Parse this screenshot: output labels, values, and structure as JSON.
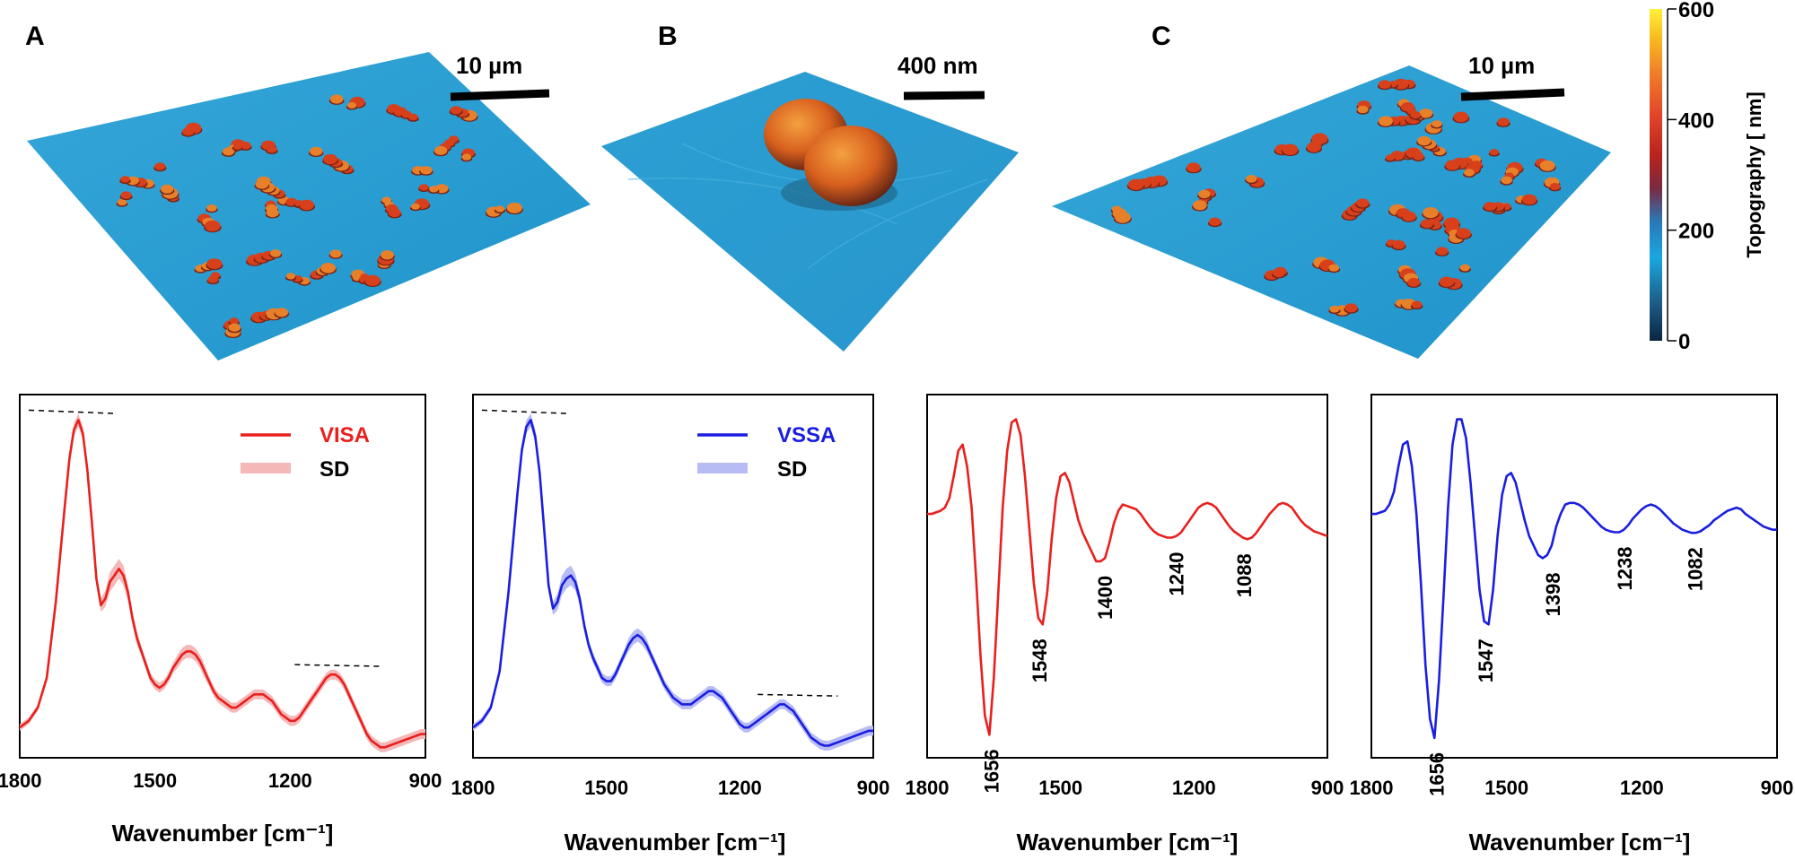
{
  "panels_top": [
    {
      "letter": "A",
      "scale_label": "10 µm"
    },
    {
      "letter": "B",
      "scale_label": "400 nm"
    },
    {
      "letter": "C",
      "scale_label": "10 µm"
    }
  ],
  "colorbar": {
    "label": "Topography [ nm]",
    "ticks": [
      0,
      200,
      400,
      600
    ],
    "colors": [
      "#0b2540",
      "#1e5f8a",
      "#1aa7df",
      "#2a78b6",
      "#7a2a40",
      "#b8241c",
      "#e2452a",
      "#f07a2a",
      "#f8c020",
      "#fff13a"
    ]
  },
  "chart_data": [
    {
      "id": "D",
      "type": "line",
      "xlabel": "Wavenumber [cm⁻¹]",
      "xlim": [
        1800,
        900
      ],
      "ylim": [
        0,
        1.05
      ],
      "x_ticks": [
        1800,
        1500,
        1200,
        900
      ],
      "legend": {
        "series": "VISA",
        "sd": "SD"
      },
      "color": "#e8201e",
      "band_color": "#f4b8b8",
      "x": [
        1800,
        1780,
        1760,
        1740,
        1720,
        1700,
        1690,
        1680,
        1670,
        1660,
        1650,
        1640,
        1630,
        1620,
        1610,
        1600,
        1590,
        1580,
        1570,
        1560,
        1550,
        1540,
        1530,
        1520,
        1510,
        1500,
        1490,
        1480,
        1470,
        1460,
        1450,
        1440,
        1430,
        1420,
        1410,
        1400,
        1390,
        1380,
        1370,
        1360,
        1350,
        1340,
        1330,
        1320,
        1310,
        1300,
        1290,
        1280,
        1270,
        1260,
        1250,
        1240,
        1230,
        1220,
        1210,
        1200,
        1190,
        1180,
        1170,
        1160,
        1150,
        1140,
        1130,
        1120,
        1110,
        1100,
        1090,
        1080,
        1070,
        1060,
        1050,
        1040,
        1030,
        1020,
        1010,
        1000,
        990,
        980,
        970,
        960,
        950,
        940,
        930,
        920,
        910,
        900
      ],
      "y": [
        0.07,
        0.09,
        0.13,
        0.22,
        0.45,
        0.74,
        0.88,
        0.97,
        1.0,
        0.96,
        0.85,
        0.69,
        0.52,
        0.44,
        0.46,
        0.51,
        0.53,
        0.55,
        0.53,
        0.48,
        0.4,
        0.34,
        0.3,
        0.26,
        0.22,
        0.2,
        0.19,
        0.2,
        0.22,
        0.25,
        0.27,
        0.29,
        0.3,
        0.3,
        0.29,
        0.27,
        0.24,
        0.21,
        0.18,
        0.16,
        0.15,
        0.14,
        0.13,
        0.13,
        0.14,
        0.15,
        0.16,
        0.17,
        0.17,
        0.17,
        0.16,
        0.15,
        0.13,
        0.11,
        0.1,
        0.09,
        0.09,
        0.1,
        0.12,
        0.14,
        0.16,
        0.18,
        0.2,
        0.22,
        0.23,
        0.23,
        0.22,
        0.2,
        0.17,
        0.14,
        0.11,
        0.08,
        0.05,
        0.03,
        0.02,
        0.01,
        0.01,
        0.015,
        0.02,
        0.025,
        0.03,
        0.035,
        0.04,
        0.045,
        0.05,
        0.05
      ],
      "sd": [
        0.01,
        0.01,
        0.01,
        0.01,
        0.015,
        0.02,
        0.02,
        0.02,
        0.02,
        0.02,
        0.02,
        0.02,
        0.02,
        0.02,
        0.025,
        0.03,
        0.03,
        0.03,
        0.03,
        0.025,
        0.02,
        0.02,
        0.015,
        0.015,
        0.015,
        0.015,
        0.015,
        0.015,
        0.015,
        0.015,
        0.02,
        0.02,
        0.02,
        0.02,
        0.02,
        0.02,
        0.02,
        0.015,
        0.015,
        0.015,
        0.015,
        0.015,
        0.015,
        0.015,
        0.015,
        0.015,
        0.015,
        0.015,
        0.015,
        0.015,
        0.015,
        0.015,
        0.015,
        0.015,
        0.015,
        0.015,
        0.015,
        0.015,
        0.015,
        0.015,
        0.015,
        0.015,
        0.015,
        0.015,
        0.015,
        0.015,
        0.015,
        0.015,
        0.015,
        0.015,
        0.015,
        0.015,
        0.015,
        0.015,
        0.015,
        0.015,
        0.015,
        0.015,
        0.015,
        0.015,
        0.015,
        0.015,
        0.015,
        0.015,
        0.015,
        0.015
      ],
      "dashes": [
        [
          1780,
          1.03,
          1590,
          1.02
        ],
        [
          1190,
          0.26,
          1000,
          0.255
        ]
      ]
    },
    {
      "id": "E",
      "type": "line",
      "xlabel": "Wavenumber [cm⁻¹]",
      "xlim": [
        1800,
        900
      ],
      "ylim": [
        0,
        1.05
      ],
      "x_ticks": [
        1800,
        1500,
        1200,
        900
      ],
      "legend": {
        "series": "VSSA",
        "sd": "SD"
      },
      "color": "#1a1ee0",
      "band_color": "#b8bcf4",
      "x": [
        1800,
        1780,
        1760,
        1740,
        1720,
        1700,
        1690,
        1680,
        1670,
        1660,
        1650,
        1640,
        1630,
        1620,
        1610,
        1600,
        1590,
        1580,
        1570,
        1560,
        1550,
        1540,
        1530,
        1520,
        1510,
        1500,
        1490,
        1480,
        1470,
        1460,
        1450,
        1440,
        1430,
        1420,
        1410,
        1400,
        1390,
        1380,
        1370,
        1360,
        1350,
        1340,
        1330,
        1320,
        1310,
        1300,
        1290,
        1280,
        1270,
        1260,
        1250,
        1240,
        1230,
        1220,
        1210,
        1200,
        1190,
        1180,
        1170,
        1160,
        1150,
        1140,
        1130,
        1120,
        1110,
        1100,
        1090,
        1080,
        1070,
        1060,
        1050,
        1040,
        1030,
        1020,
        1010,
        1000,
        990,
        980,
        970,
        960,
        950,
        940,
        930,
        920,
        910,
        900
      ],
      "y": [
        0.07,
        0.09,
        0.13,
        0.24,
        0.48,
        0.78,
        0.91,
        0.98,
        1.0,
        0.95,
        0.84,
        0.67,
        0.5,
        0.43,
        0.45,
        0.5,
        0.52,
        0.53,
        0.51,
        0.46,
        0.38,
        0.32,
        0.28,
        0.25,
        0.22,
        0.21,
        0.21,
        0.23,
        0.26,
        0.29,
        0.32,
        0.34,
        0.35,
        0.34,
        0.32,
        0.29,
        0.26,
        0.23,
        0.2,
        0.18,
        0.16,
        0.15,
        0.14,
        0.14,
        0.14,
        0.15,
        0.16,
        0.17,
        0.18,
        0.18,
        0.17,
        0.16,
        0.14,
        0.12,
        0.1,
        0.08,
        0.07,
        0.07,
        0.08,
        0.09,
        0.1,
        0.11,
        0.12,
        0.13,
        0.14,
        0.14,
        0.13,
        0.12,
        0.1,
        0.08,
        0.06,
        0.04,
        0.03,
        0.02,
        0.015,
        0.015,
        0.02,
        0.025,
        0.03,
        0.035,
        0.04,
        0.045,
        0.05,
        0.055,
        0.06,
        0.06
      ],
      "sd": [
        0.01,
        0.01,
        0.01,
        0.01,
        0.015,
        0.02,
        0.02,
        0.02,
        0.02,
        0.02,
        0.02,
        0.02,
        0.02,
        0.02,
        0.025,
        0.03,
        0.03,
        0.03,
        0.025,
        0.02,
        0.02,
        0.015,
        0.015,
        0.015,
        0.015,
        0.015,
        0.015,
        0.015,
        0.015,
        0.015,
        0.02,
        0.02,
        0.02,
        0.02,
        0.02,
        0.015,
        0.015,
        0.015,
        0.015,
        0.015,
        0.015,
        0.015,
        0.015,
        0.015,
        0.015,
        0.015,
        0.015,
        0.015,
        0.015,
        0.015,
        0.015,
        0.015,
        0.015,
        0.015,
        0.015,
        0.015,
        0.015,
        0.015,
        0.015,
        0.015,
        0.015,
        0.015,
        0.015,
        0.015,
        0.015,
        0.015,
        0.015,
        0.015,
        0.015,
        0.015,
        0.015,
        0.015,
        0.015,
        0.015,
        0.015,
        0.015,
        0.015,
        0.015,
        0.015,
        0.015,
        0.015,
        0.015,
        0.015,
        0.015,
        0.015,
        0.015
      ],
      "dashes": [
        [
          1780,
          1.03,
          1590,
          1.02
        ],
        [
          1160,
          0.17,
          980,
          0.165
        ]
      ]
    },
    {
      "id": "F",
      "type": "line",
      "xlabel": "Wavenumber [cm⁻¹]",
      "xlim": [
        1800,
        900
      ],
      "ylim": [
        -0.75,
        0.35
      ],
      "x_ticks": [
        1800,
        1500,
        1200,
        900
      ],
      "color": "#e8201e",
      "x": [
        1800,
        1790,
        1780,
        1770,
        1760,
        1750,
        1740,
        1730,
        1720,
        1710,
        1700,
        1690,
        1680,
        1670,
        1660,
        1650,
        1640,
        1630,
        1620,
        1610,
        1600,
        1590,
        1580,
        1570,
        1560,
        1550,
        1540,
        1530,
        1520,
        1510,
        1500,
        1490,
        1480,
        1470,
        1460,
        1450,
        1440,
        1430,
        1420,
        1410,
        1400,
        1390,
        1380,
        1370,
        1360,
        1350,
        1340,
        1330,
        1320,
        1310,
        1300,
        1290,
        1280,
        1270,
        1260,
        1250,
        1240,
        1230,
        1220,
        1210,
        1200,
        1190,
        1180,
        1170,
        1160,
        1150,
        1140,
        1130,
        1120,
        1110,
        1100,
        1090,
        1080,
        1070,
        1060,
        1050,
        1040,
        1030,
        1020,
        1010,
        1000,
        990,
        980,
        970,
        960,
        950,
        940,
        930,
        920,
        910,
        900
      ],
      "y": [
        0.0,
        0.0,
        0.005,
        0.01,
        0.02,
        0.05,
        0.12,
        0.2,
        0.22,
        0.15,
        0.02,
        -0.2,
        -0.45,
        -0.64,
        -0.7,
        -0.52,
        -0.25,
        0.02,
        0.2,
        0.29,
        0.3,
        0.25,
        0.12,
        -0.05,
        -0.22,
        -0.33,
        -0.35,
        -0.25,
        -0.08,
        0.05,
        0.12,
        0.13,
        0.1,
        0.04,
        -0.02,
        -0.06,
        -0.09,
        -0.12,
        -0.15,
        -0.15,
        -0.14,
        -0.09,
        -0.03,
        0.01,
        0.03,
        0.025,
        0.02,
        0.015,
        0.0,
        -0.02,
        -0.04,
        -0.055,
        -0.065,
        -0.07,
        -0.075,
        -0.075,
        -0.07,
        -0.06,
        -0.04,
        -0.02,
        0.0,
        0.02,
        0.03,
        0.035,
        0.03,
        0.02,
        0.0,
        -0.02,
        -0.04,
        -0.055,
        -0.065,
        -0.075,
        -0.08,
        -0.075,
        -0.06,
        -0.04,
        -0.02,
        0.0,
        0.015,
        0.03,
        0.035,
        0.03,
        0.02,
        0.0,
        -0.02,
        -0.035,
        -0.045,
        -0.055,
        -0.06,
        -0.065,
        -0.07
      ],
      "annotations": [
        {
          "text": "1656",
          "x": 1656,
          "y": -0.7
        },
        {
          "text": "1548",
          "x": 1548,
          "y": -0.35
        },
        {
          "text": "1400",
          "x": 1400,
          "y": -0.15
        },
        {
          "text": "1240",
          "x": 1240,
          "y": -0.075
        },
        {
          "text": "1088",
          "x": 1088,
          "y": -0.08
        }
      ]
    },
    {
      "id": "G",
      "type": "line",
      "xlabel": "Wavenumber [cm⁻¹]",
      "xlim": [
        1800,
        900
      ],
      "ylim": [
        -0.75,
        0.35
      ],
      "x_ticks": [
        1800,
        1500,
        1200,
        900
      ],
      "color": "#1a1ee0",
      "x": [
        1800,
        1790,
        1780,
        1770,
        1760,
        1750,
        1740,
        1730,
        1720,
        1710,
        1700,
        1690,
        1680,
        1670,
        1660,
        1650,
        1640,
        1630,
        1620,
        1610,
        1600,
        1590,
        1580,
        1570,
        1560,
        1550,
        1540,
        1530,
        1520,
        1510,
        1500,
        1490,
        1480,
        1470,
        1460,
        1450,
        1440,
        1430,
        1420,
        1410,
        1400,
        1390,
        1380,
        1370,
        1360,
        1350,
        1340,
        1330,
        1320,
        1310,
        1300,
        1290,
        1280,
        1270,
        1260,
        1250,
        1240,
        1230,
        1220,
        1210,
        1200,
        1190,
        1180,
        1170,
        1160,
        1150,
        1140,
        1130,
        1120,
        1110,
        1100,
        1090,
        1080,
        1070,
        1060,
        1050,
        1040,
        1030,
        1020,
        1010,
        1000,
        990,
        980,
        970,
        960,
        950,
        940,
        930,
        920,
        910,
        900
      ],
      "y": [
        0.0,
        0.0,
        0.005,
        0.01,
        0.03,
        0.07,
        0.15,
        0.22,
        0.23,
        0.15,
        0.0,
        -0.22,
        -0.48,
        -0.65,
        -0.71,
        -0.53,
        -0.26,
        0.02,
        0.22,
        0.3,
        0.3,
        0.24,
        0.1,
        -0.07,
        -0.24,
        -0.34,
        -0.35,
        -0.24,
        -0.07,
        0.06,
        0.12,
        0.13,
        0.1,
        0.04,
        -0.02,
        -0.07,
        -0.1,
        -0.13,
        -0.14,
        -0.13,
        -0.1,
        -0.04,
        0.0,
        0.03,
        0.035,
        0.035,
        0.03,
        0.02,
        0.005,
        -0.01,
        -0.025,
        -0.04,
        -0.05,
        -0.055,
        -0.058,
        -0.058,
        -0.05,
        -0.035,
        -0.015,
        0.0,
        0.015,
        0.025,
        0.03,
        0.025,
        0.015,
        0.0,
        -0.015,
        -0.03,
        -0.04,
        -0.05,
        -0.055,
        -0.06,
        -0.06,
        -0.055,
        -0.045,
        -0.035,
        -0.02,
        -0.01,
        0.0,
        0.01,
        0.015,
        0.02,
        0.015,
        0.0,
        -0.01,
        -0.02,
        -0.03,
        -0.04,
        -0.045,
        -0.05,
        -0.05
      ],
      "annotations": [
        {
          "text": "1656",
          "x": 1656,
          "y": -0.71
        },
        {
          "text": "1547",
          "x": 1547,
          "y": -0.35
        },
        {
          "text": "1398",
          "x": 1398,
          "y": -0.14
        },
        {
          "text": "1238",
          "x": 1238,
          "y": -0.058
        },
        {
          "text": "1082",
          "x": 1082,
          "y": -0.06
        }
      ]
    }
  ]
}
